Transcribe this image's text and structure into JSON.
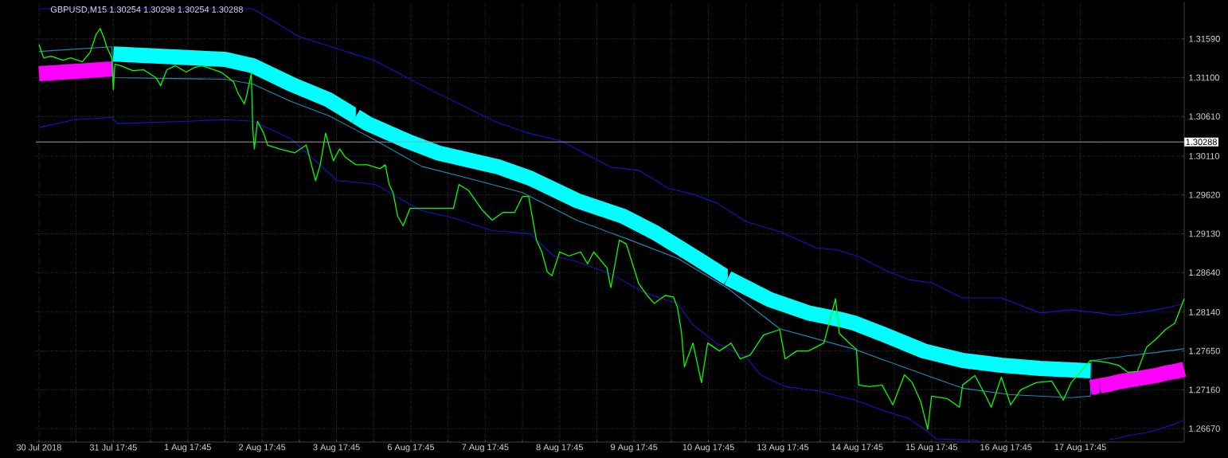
{
  "chart_data": [
    {
      "type": "line",
      "title": "GBPUSD,M15 1.30254 1.30298 1.30254 1.30288",
      "tick_labels": "x",
      "xlim": [
        "2018-07-30T16:45",
        "2018-08-04T00:00"
      ],
      "ylim": [
        1.265,
        1.3205
      ],
      "grid": true,
      "xticks": [
        {
          "value": "2018-07-30T17:45",
          "label": "30 Jul 2018"
        },
        {
          "value": "2018-07-31T05:45",
          "label": null
        },
        {
          "value": "2018-07-31T17:45",
          "label": "31 Jul 17:45"
        },
        {
          "value": "2018-08-01T05:45",
          "label": null
        },
        {
          "value": "2018-08-01T17:45",
          "label": "1 Aug 17:45"
        },
        {
          "value": "2018-08-02T05:45",
          "label": null
        },
        {
          "value": "2018-08-02T17:45",
          "label": "2 Aug 17:45"
        },
        {
          "value": "2018-08-03T05:45",
          "label": null
        },
        {
          "value": "2018-08-03T17:45",
          "label": "3 Aug 17:45"
        }
      ],
      "yticks": [
        {
          "value": 1.2667,
          "label": null
        },
        {
          "value": 1.2716,
          "label": null
        },
        {
          "value": 1.2765,
          "label": null
        },
        {
          "value": 1.2814,
          "label": null
        },
        {
          "value": 1.2864,
          "label": null
        },
        {
          "value": 1.2913,
          "label": null
        },
        {
          "value": 1.2962,
          "label": null
        },
        {
          "value": 1.3011,
          "label": null
        },
        {
          "value": 1.3061,
          "label": null
        },
        {
          "value": 1.311,
          "label": null
        },
        {
          "value": 1.3159,
          "label": null
        }
      ],
      "ref_lines": [
        {
          "axis": "y",
          "value": 1.30288,
          "color": "#a0a0a0"
        }
      ],
      "series": [
        {
          "color": "#1414c8",
          "x": [
            "2018-07-30T17:45",
            "2018-07-31T14:45",
            "2018-08-02T14:45",
            "2018-08-03T05:30",
            "2018-08-03T15:15",
            "2018-08-04T00:00"
          ],
          "values": [
            1.3197,
            1.3197,
            1.3197,
            1.3162,
            1.315,
            1.3139
          ]
        },
        {
          "color": "#1414c8",
          "x": [
            "2018-07-30T17:45",
            "2018-07-31T05:15",
            "2018-07-31T17:15",
            "2018-07-31T19:00",
            "2018-08-01T17:45",
            "2018-08-02T05:45",
            "2018-08-02T14:45",
            "2018-08-03T03:00",
            "2018-08-03T18:00",
            "2018-08-04T00:00"
          ],
          "values": [
            1.3047,
            1.3057,
            1.306,
            1.3052,
            1.3055,
            1.3057,
            1.3055,
            1.3033,
            1.298,
            1.2978
          ]
        },
        {
          "color": "#1e8cb4",
          "x": [
            "2018-07-30T17:45",
            "2018-07-31T17:15",
            "2018-07-31T17:45",
            "2018-08-02T05:45",
            "2018-08-02T14:45",
            "2018-08-03T03:00",
            "2018-08-03T15:15",
            "2018-08-04T00:00"
          ],
          "values": [
            1.3143,
            1.3149,
            1.311,
            1.3108,
            1.3102,
            1.308,
            1.3062,
            1.3044
          ]
        },
        {
          "color": "#ff00ff",
          "x": [
            "2018-07-30T17:45",
            "2018-07-31T17:45"
          ],
          "values": [
            1.3115,
            1.3121
          ]
        },
        {
          "color": "#00ffff",
          "x": [
            "2018-07-31T17:45",
            "2018-08-02T05:45",
            "2018-08-02T14:45",
            "2018-08-03T03:00",
            "2018-08-03T15:15",
            "2018-08-04T00:00"
          ],
          "values": [
            1.314,
            1.3133,
            1.3125,
            1.3102,
            1.3082,
            1.3061
          ]
        },
        {
          "color": "#00ff00",
          "x": [
            "2018-07-30T17:45",
            "2018-07-30T19:15",
            "2018-07-30T21:45",
            "2018-07-31T01:30",
            "2018-07-31T04:00",
            "2018-07-31T07:45",
            "2018-07-31T10:15",
            "2018-07-31T12:15",
            "2018-07-31T13:30",
            "2018-07-31T14:45",
            "2018-07-31T15:30",
            "2018-07-31T17:15",
            "2018-07-31T17:45",
            "2018-07-31T18:15",
            "2018-07-31T20:15",
            "2018-08-01T00:00",
            "2018-08-01T03:30",
            "2018-08-01T07:30",
            "2018-08-01T09:00",
            "2018-08-01T11:00",
            "2018-08-01T13:45",
            "2018-08-01T17:15",
            "2018-08-01T20:00",
            "2018-08-01T22:15",
            "2018-08-02T00:45",
            "2018-08-02T04:30",
            "2018-08-02T08:30",
            "2018-08-02T10:00",
            "2018-08-02T12:00",
            "2018-08-02T12:45",
            "2018-08-02T14:15",
            "2018-08-02T14:45",
            "2018-08-02T15:15",
            "2018-08-02T16:15",
            "2018-08-02T18:15",
            "2018-08-02T19:30",
            "2018-08-02T23:15",
            "2018-08-03T04:15",
            "2018-08-03T08:00",
            "2018-08-03T09:00",
            "2018-08-03T11:00",
            "2018-08-03T12:30",
            "2018-08-03T14:15",
            "2018-08-03T15:15",
            "2018-08-03T16:45",
            "2018-08-03T18:45",
            "2018-08-03T20:30",
            "2018-08-04T00:00"
          ],
          "values": [
            1.3152,
            1.3135,
            1.3137,
            1.3132,
            1.3135,
            1.313,
            1.3142,
            1.3165,
            1.3172,
            1.316,
            1.315,
            1.3135,
            1.3095,
            1.3127,
            1.3125,
            1.3119,
            1.312,
            1.311,
            1.31,
            1.312,
            1.3125,
            1.3117,
            1.3123,
            1.3125,
            1.3122,
            1.3117,
            1.3105,
            1.309,
            1.3077,
            1.3087,
            1.3115,
            1.3045,
            1.302,
            1.3055,
            1.304,
            1.3025,
            1.302,
            1.3015,
            1.3025,
            1.301,
            1.298,
            1.3,
            1.304,
            1.3025,
            1.3005,
            1.302,
            1.301,
            1.3
          ]
        }
      ]
    },
    {
      "type": "line",
      "tick_labels": "x",
      "xlim": [
        "2018-08-06T00:00",
        "2018-08-11T00:00"
      ],
      "ylim": [
        1.265,
        1.3205
      ],
      "grid": true,
      "xticks": [
        {
          "value": "2018-08-06T05:45",
          "label": null
        },
        {
          "value": "2018-08-06T17:45",
          "label": "6 Aug 17:45"
        },
        {
          "value": "2018-08-07T05:45",
          "label": null
        },
        {
          "value": "2018-08-07T17:45",
          "label": "7 Aug 17:45"
        },
        {
          "value": "2018-08-08T05:45",
          "label": null
        },
        {
          "value": "2018-08-08T17:45",
          "label": "8 Aug 17:45"
        },
        {
          "value": "2018-08-09T05:45",
          "label": null
        },
        {
          "value": "2018-08-09T17:45",
          "label": "9 Aug 17:45"
        },
        {
          "value": "2018-08-10T05:45",
          "label": null
        },
        {
          "value": "2018-08-10T17:45",
          "label": "10 Aug 17:45"
        }
      ],
      "yticks": [
        {
          "value": 1.2667,
          "label": null
        },
        {
          "value": 1.2716,
          "label": null
        },
        {
          "value": 1.2765,
          "label": null
        },
        {
          "value": 1.2814,
          "label": null
        },
        {
          "value": 1.2864,
          "label": null
        },
        {
          "value": 1.2913,
          "label": null
        },
        {
          "value": 1.2962,
          "label": null
        },
        {
          "value": 1.3011,
          "label": null
        },
        {
          "value": 1.3061,
          "label": null
        },
        {
          "value": 1.311,
          "label": null
        },
        {
          "value": 1.3159,
          "label": null
        }
      ],
      "ref_lines": [
        {
          "axis": "y",
          "value": 1.30288,
          "color": "#a0a0a0"
        }
      ],
      "series": [
        {
          "color": "#1414c8",
          "x": [
            "2018-08-06T00:00",
            "2018-08-06T05:45",
            "2018-08-06T16:30",
            "2018-08-07T02:30",
            "2018-08-07T20:45",
            "2018-08-08T05:45",
            "2018-08-08T18:15",
            "2018-08-09T10:15",
            "2018-08-09T19:15",
            "2018-08-10T05:00",
            "2018-08-10T12:45",
            "2018-08-10T20:15",
            "2018-08-11T00:00"
          ],
          "values": [
            1.3139,
            1.3132,
            1.311,
            1.309,
            1.3055,
            1.3042,
            1.303,
            1.2997,
            1.2993,
            1.297,
            1.2963,
            1.2952,
            1.2943
          ]
        },
        {
          "color": "#1414c8",
          "x": [
            "2018-08-06T00:00",
            "2018-08-06T06:30",
            "2018-08-06T15:15",
            "2018-08-06T21:15",
            "2018-08-07T07:30",
            "2018-08-07T20:00",
            "2018-08-08T08:15",
            "2018-08-08T15:45",
            "2018-08-08T23:15",
            "2018-08-09T10:15",
            "2018-08-09T21:30",
            "2018-08-10T07:45",
            "2018-08-10T12:45",
            "2018-08-10T20:15",
            "2018-08-11T00:00"
          ],
          "values": [
            1.2978,
            1.2975,
            1.2955,
            1.2942,
            1.2933,
            1.2917,
            1.2913,
            1.2885,
            1.2878,
            1.2862,
            1.2838,
            1.2825,
            1.2798,
            1.2775,
            1.2768
          ]
        },
        {
          "color": "#1e8cb4",
          "x": [
            "2018-08-06T00:00",
            "2018-08-06T05:45",
            "2018-08-06T21:15",
            "2018-08-07T12:15",
            "2018-08-08T05:45",
            "2018-08-08T23:15",
            "2018-08-09T16:30",
            "2018-08-10T07:45",
            "2018-08-11T00:00"
          ],
          "values": [
            1.3044,
            1.3032,
            1.2998,
            1.2983,
            1.2965,
            1.293,
            1.2905,
            1.2882,
            1.2844
          ]
        },
        {
          "color": "#00ffff",
          "x": [
            "2018-08-06T00:00",
            "2018-08-06T03:45",
            "2018-08-06T16:30",
            "2018-08-07T02:30",
            "2018-08-07T22:15",
            "2018-08-08T08:15",
            "2018-08-08T23:15",
            "2018-08-09T14:15",
            "2018-08-10T00:15",
            "2018-08-10T12:45",
            "2018-08-11T00:00"
          ],
          "values": [
            1.3061,
            1.3052,
            1.303,
            1.3015,
            1.2997,
            1.2983,
            1.2955,
            1.2935,
            1.2915,
            1.2885,
            1.2857
          ]
        },
        {
          "color": "#00ff00",
          "x": [
            "2018-08-06T00:00",
            "2018-08-06T03:45",
            "2018-08-06T07:45",
            "2018-08-06T09:30",
            "2018-08-06T10:45",
            "2018-08-06T12:00",
            "2018-08-06T13:30",
            "2018-08-06T15:15",
            "2018-08-06T17:30",
            "2018-08-06T21:15",
            "2018-08-07T07:30",
            "2018-08-07T09:15",
            "2018-08-07T12:15",
            "2018-08-07T16:45",
            "2018-08-07T20:00",
            "2018-08-07T23:30",
            "2018-08-08T03:15",
            "2018-08-08T05:45",
            "2018-08-08T07:45",
            "2018-08-08T10:15",
            "2018-08-08T12:00",
            "2018-08-08T13:45",
            "2018-08-08T15:15",
            "2018-08-08T17:45",
            "2018-08-08T20:45",
            "2018-08-09T00:30",
            "2018-08-09T02:45",
            "2018-08-09T04:45",
            "2018-08-09T09:00",
            "2018-08-09T10:15",
            "2018-08-09T13:00",
            "2018-08-09T15:15",
            "2018-08-09T17:15",
            "2018-08-09T19:15",
            "2018-08-09T22:00",
            "2018-08-10T00:15",
            "2018-08-10T03:45",
            "2018-08-10T06:30",
            "2018-08-10T07:45",
            "2018-08-10T09:00",
            "2018-08-10T10:00",
            "2018-08-10T12:45",
            "2018-08-10T15:30",
            "2018-08-10T17:30",
            "2018-08-10T21:15",
            "2018-08-11T00:00"
          ],
          "values": [
            1.3,
            1.3,
            1.2995,
            1.3,
            1.2975,
            1.2965,
            1.2935,
            1.2923,
            1.2945,
            1.2945,
            1.2945,
            1.2975,
            1.2968,
            1.2943,
            1.293,
            1.294,
            1.294,
            1.296,
            1.296,
            1.2905,
            1.289,
            1.2865,
            1.286,
            1.289,
            1.2885,
            1.289,
            1.2875,
            1.289,
            1.287,
            1.2845,
            1.2905,
            1.29,
            1.2875,
            1.285,
            1.2835,
            1.2825,
            1.2835,
            1.2833,
            1.282,
            1.279,
            1.2745,
            1.2775,
            1.2725,
            1.2775,
            1.2765,
            1.2772
          ]
        }
      ]
    },
    {
      "type": "line",
      "tick_labels": "x",
      "xlim": [
        "2018-08-13T00:00",
        "2018-08-18T00:00"
      ],
      "ylim": [
        1.265,
        1.3205
      ],
      "grid": true,
      "xticks": [
        {
          "value": "2018-08-13T05:45",
          "label": null
        },
        {
          "value": "2018-08-13T17:45",
          "label": "13 Aug 17:45"
        },
        {
          "value": "2018-08-14T05:45",
          "label": null
        },
        {
          "value": "2018-08-14T17:45",
          "label": "14 Aug 17:45"
        },
        {
          "value": "2018-08-15T05:45",
          "label": null
        },
        {
          "value": "2018-08-15T17:45",
          "label": "15 Aug 17:45"
        },
        {
          "value": "2018-08-16T05:45",
          "label": null
        },
        {
          "value": "2018-08-16T17:45",
          "label": "16 Aug 17:45"
        },
        {
          "value": "2018-08-17T05:45",
          "label": null
        },
        {
          "value": "2018-08-17T17:45",
          "label": "17 Aug 17:45"
        }
      ],
      "yticks": [
        {
          "value": 1.2667,
          "label": null
        },
        {
          "value": 1.2716,
          "label": null
        },
        {
          "value": 1.2765,
          "label": null
        },
        {
          "value": 1.2814,
          "label": null
        },
        {
          "value": 1.2864,
          "label": null
        },
        {
          "value": 1.2913,
          "label": null
        },
        {
          "value": 1.2962,
          "label": null
        },
        {
          "value": 1.3011,
          "label": null
        },
        {
          "value": 1.3061,
          "label": null
        },
        {
          "value": 1.311,
          "label": null
        },
        {
          "value": 1.3159,
          "label": null
        }
      ],
      "ref_lines": [
        {
          "axis": "y",
          "value": 1.30288,
          "color": "#a0a0a0"
        }
      ],
      "series": [
        {
          "color": "#1414c8",
          "x": [
            "2018-08-13T00:00",
            "2018-08-13T06:00",
            "2018-08-13T17:15",
            "2018-08-14T04:30",
            "2018-08-14T10:45",
            "2018-08-14T18:15",
            "2018-08-15T02:45",
            "2018-08-15T10:15",
            "2018-08-15T17:45",
            "2018-08-16T03:45",
            "2018-08-16T16:15",
            "2018-08-17T04:45",
            "2018-08-17T14:45",
            "2018-08-18T00:00"
          ],
          "values": [
            1.2943,
            1.2928,
            1.2915,
            1.2895,
            1.2893,
            1.2884,
            1.2867,
            1.2855,
            1.2851,
            1.2832,
            1.2832,
            1.2813,
            1.2817,
            1.2813
          ]
        },
        {
          "color": "#1414c8",
          "x": [
            "2018-08-13T00:00",
            "2018-08-13T06:00",
            "2018-08-13T10:30",
            "2018-08-13T18:30",
            "2018-08-14T04:30",
            "2018-08-14T17:00",
            "2018-08-15T02:45",
            "2018-08-15T10:15",
            "2018-08-15T16:30",
            "2018-08-15T19:15",
            "2018-08-16T09:00"
          ],
          "values": [
            1.2768,
            1.2757,
            1.2735,
            1.272,
            1.2715,
            1.2703,
            1.2689,
            1.268,
            1.2663,
            1.2654,
            1.2652
          ]
        },
        {
          "color": "#1e8cb4",
          "x": [
            "2018-08-13T00:00",
            "2018-08-13T16:45",
            "2018-08-14T17:00",
            "2018-08-15T02:45",
            "2018-08-15T17:45",
            "2018-08-16T03:45",
            "2018-08-16T18:45",
            "2018-08-17T14:45",
            "2018-08-17T21:00",
            "2018-08-17T21:15",
            "2018-08-18T00:00"
          ],
          "values": [
            1.2844,
            1.2793,
            1.2767,
            1.2753,
            1.2732,
            1.2718,
            1.271,
            1.2706,
            1.2708,
            1.2753,
            1.2754
          ]
        },
        {
          "color": "#ff00ff",
          "x": [
            "2018-08-17T21:00",
            "2018-08-18T00:00"
          ],
          "values": [
            1.2719,
            1.2721
          ]
        },
        {
          "color": "#00ffff",
          "x": [
            "2018-08-13T00:00",
            "2018-08-13T13:30",
            "2018-08-14T02:00",
            "2018-08-14T12:00",
            "2018-08-14T17:00",
            "2018-08-15T02:45",
            "2018-08-15T15:15",
            "2018-08-16T03:45",
            "2018-08-16T16:15",
            "2018-08-17T04:45",
            "2018-08-17T21:00"
          ],
          "values": [
            1.2857,
            1.283,
            1.2813,
            1.2805,
            1.28,
            1.2785,
            1.2765,
            1.2753,
            1.2747,
            1.2743,
            1.274
          ]
        },
        {
          "color": "#00ff00",
          "x": [
            "2018-08-13T00:00",
            "2018-08-13T01:00",
            "2018-08-13T04:00",
            "2018-08-13T07:15",
            "2018-08-13T11:30",
            "2018-08-13T16:45",
            "2018-08-13T18:30",
            "2018-08-13T22:15",
            "2018-08-14T02:00",
            "2018-08-14T04:30",
            "2018-08-14T07:00",
            "2018-08-14T10:45",
            "2018-08-14T12:00",
            "2018-08-14T15:30",
            "2018-08-14T17:30",
            "2018-08-14T18:15",
            "2018-08-14T21:45",
            "2018-08-15T01:45",
            "2018-08-15T05:15",
            "2018-08-15T09:00",
            "2018-08-15T11:30",
            "2018-08-15T14:15",
            "2018-08-15T16:30",
            "2018-08-15T17:45",
            "2018-08-15T22:45",
            "2018-08-16T02:45",
            "2018-08-16T03:45",
            "2018-08-16T07:45",
            "2018-08-16T11:15",
            "2018-08-16T13:00",
            "2018-08-16T16:15",
            "2018-08-16T19:15",
            "2018-08-16T22:30",
            "2018-08-17T03:30",
            "2018-08-17T08:30",
            "2018-08-17T12:15",
            "2018-08-17T14:45",
            "2018-08-17T21:00",
            "2018-08-18T00:00"
          ],
          "values": [
            1.2772,
            1.2775,
            1.2755,
            1.276,
            1.2785,
            1.2792,
            1.2755,
            1.2765,
            1.2765,
            1.277,
            1.2775,
            1.2831,
            1.2787,
            1.2774,
            1.2767,
            1.2722,
            1.272,
            1.2722,
            1.2697,
            1.2735,
            1.2725,
            1.2701,
            1.2666,
            1.2708,
            1.2705,
            1.2694,
            1.2722,
            1.2734,
            1.2708,
            1.2694,
            1.2732,
            1.2697,
            1.2716,
            1.2725,
            1.2727,
            1.2703,
            1.2725,
            1.2753,
            1.2752
          ]
        }
      ]
    },
    {
      "type": "line",
      "tick_labels": "y",
      "categories": [
        null,
        null,
        null,
        null,
        null,
        null,
        null,
        null,
        null,
        null
      ],
      "ylim": [
        1.265,
        1.3205
      ],
      "grid": "y",
      "yticks": [
        {
          "value": 1.2667,
          "label": "1.26670"
        },
        {
          "value": 1.2716,
          "label": "1.27160"
        },
        {
          "value": 1.2765,
          "label": "1.27650"
        },
        {
          "value": 1.2814,
          "label": "1.28140"
        },
        {
          "value": 1.2864,
          "label": "1.28640"
        },
        {
          "value": 1.2913,
          "label": "1.29130"
        },
        {
          "value": 1.2962,
          "label": "1.29620"
        },
        {
          "value": 1.3011,
          "label": "1.30110"
        },
        {
          "value": 1.3061,
          "label": "1.30610"
        },
        {
          "value": 1.311,
          "label": "1.31100"
        },
        {
          "value": 1.3159,
          "label": "1.31590"
        }
      ],
      "ref_lines": [
        {
          "axis": "y",
          "value": 1.30288,
          "label": "1.30288",
          "color": "#a0a0a0"
        }
      ],
      "series": [
        {
          "color": "#1414c8",
          "values": [
            1.2813,
            1.2811,
            1.281,
            1.2812,
            1.2813,
            1.2815,
            1.2817,
            1.2819,
            1.2822,
            1.2825
          ]
        },
        {
          "color": "#1414c8",
          "values": [
            null,
            1.2653,
            1.2655,
            1.2658,
            1.266,
            1.2662,
            1.2665,
            1.2669,
            1.2673,
            1.2678
          ]
        },
        {
          "color": "#1e8cb4",
          "values": [
            1.2754,
            1.2756,
            1.2757,
            1.2759,
            1.276,
            1.2762,
            1.2763,
            1.2765,
            1.2766,
            1.2768
          ]
        },
        {
          "color": "#ff00ff",
          "values": [
            1.2721,
            1.2723,
            1.2726,
            1.2728,
            1.273,
            1.2732,
            1.2734,
            1.2737,
            1.2739,
            1.2742
          ]
        },
        {
          "color": "#00ff00",
          "values": [
            1.2752,
            1.275,
            1.2747,
            1.2738,
            1.2739,
            1.277,
            1.278,
            1.2792,
            1.28,
            1.2831
          ]
        }
      ]
    }
  ]
}
